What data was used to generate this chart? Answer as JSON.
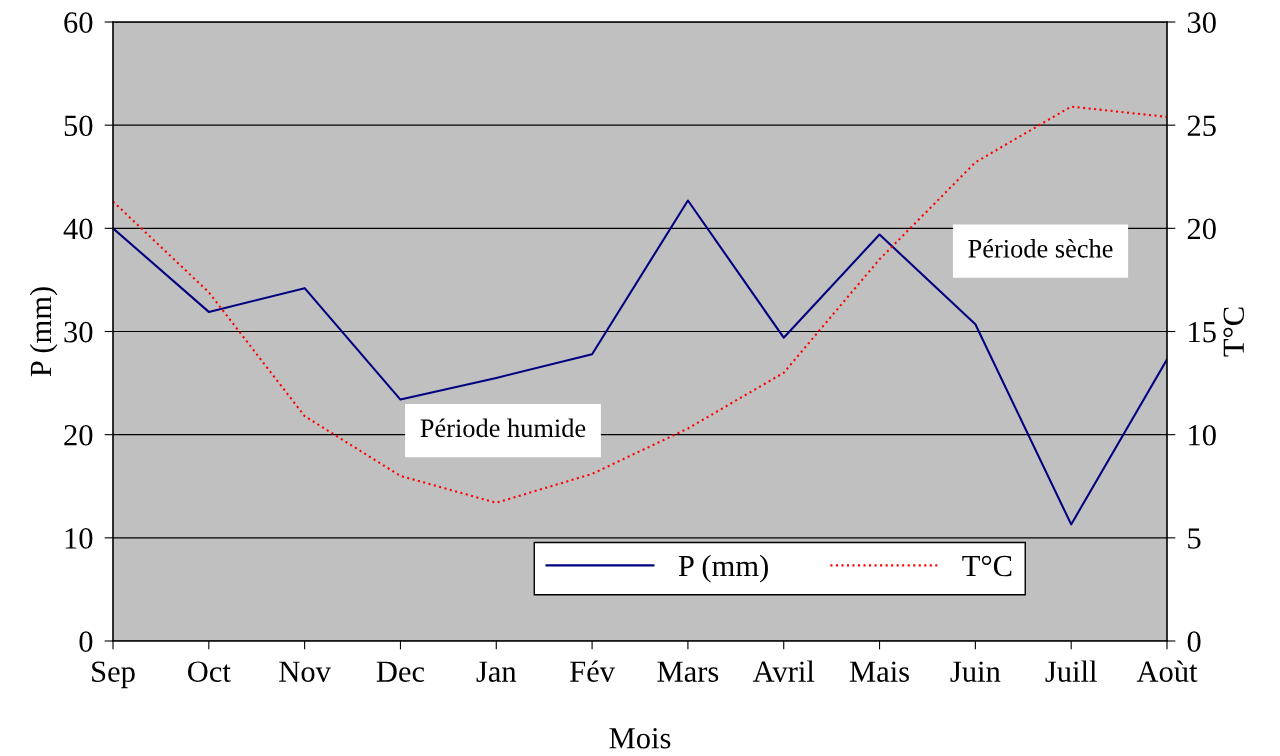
{
  "chart_data": {
    "type": "line",
    "xlabel": "Mois",
    "ylabel": "P (mm)",
    "y2label": "T°C",
    "categories": [
      "Sep",
      "Oct",
      "Nov",
      "Dec",
      "Jan",
      "Fév",
      "Mars",
      "Avril",
      "Mais",
      "Juin",
      "Juill",
      "Aoùt"
    ],
    "series": [
      {
        "name": "P (mm)",
        "color": "#000080",
        "line_style": "solid",
        "values": [
          40.0,
          31.9,
          34.2,
          23.4,
          25.5,
          27.8,
          42.7,
          29.4,
          39.4,
          30.7,
          11.3,
          27.3
        ]
      },
      {
        "name": "T°C",
        "color": "#ff0000",
        "line_style": "dotted",
        "axis": "y2",
        "values": [
          21.3,
          16.9,
          10.9,
          8.0,
          6.7,
          8.1,
          10.3,
          13.0,
          18.5,
          23.2,
          25.9,
          25.4
        ]
      }
    ],
    "ylim": [
      0,
      60
    ],
    "yticks": [
      0,
      10,
      20,
      30,
      40,
      50,
      60
    ],
    "y2lim": [
      0,
      30
    ],
    "y2ticks": [
      0,
      5,
      10,
      15,
      20,
      25,
      30
    ],
    "grid": "y",
    "legend": "bottom right",
    "marker": "none",
    "annotations": [
      "Période humide",
      "Période sèche"
    ]
  }
}
